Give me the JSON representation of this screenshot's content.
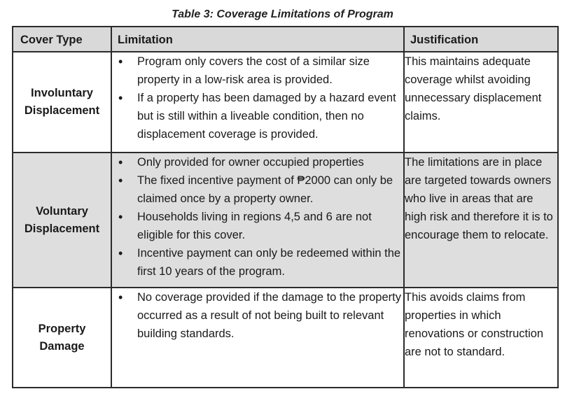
{
  "caption": "Table 3: Coverage Limitations of Program",
  "headers": {
    "cover_type": "Cover Type",
    "limitation": "Limitation",
    "justification": "Justification"
  },
  "rows": [
    {
      "cover_type_line1": "Involuntary",
      "cover_type_line2": "Displacement",
      "limitations": [
        "Program only covers the cost of a similar size property in a low-risk area is provided.",
        "If a property has been damaged by a hazard event but is still within a liveable condition, then no displacement coverage is provided."
      ],
      "justification": "This maintains adequate coverage whilst avoiding unnecessary displacement claims."
    },
    {
      "cover_type_line1": "Voluntary",
      "cover_type_line2": "Displacement",
      "limitations": [
        "Only provided for owner occupied properties",
        "The fixed incentive payment of ₱2000 can only be claimed once by a property owner.",
        "Households living in regions 4,5 and 6 are not eligible for this cover.",
        "Incentive payment can only be redeemed within the first 10 years of the program."
      ],
      "justification": "The limitations are in place are targeted towards owners who live in areas that are high risk and therefore it is to encourage them to relocate."
    },
    {
      "cover_type_line1": "Property",
      "cover_type_line2": "Damage",
      "limitations": [
        "No coverage provided if the damage to the property occurred as a result of not being built to relevant building standards."
      ],
      "justification": "This avoids claims from properties in which renovations or construction are not to standard."
    }
  ]
}
